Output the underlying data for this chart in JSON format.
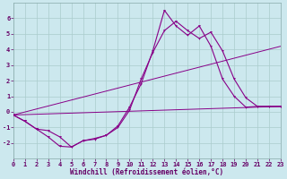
{
  "xlabel": "Windchill (Refroidissement éolien,°C)",
  "bg_color": "#cce8ee",
  "line_color": "#880088",
  "grid_color": "#aacccc",
  "curve1_x": [
    0,
    1,
    2,
    3,
    4,
    5,
    6,
    7,
    8,
    9,
    10,
    11,
    12,
    13,
    14,
    15,
    16,
    17,
    18,
    19,
    20,
    21,
    22,
    23
  ],
  "curve1_y": [
    -0.2,
    -0.6,
    -1.1,
    -1.6,
    -2.2,
    -2.25,
    -1.85,
    -1.7,
    -1.5,
    -0.9,
    0.3,
    1.8,
    3.9,
    6.5,
    5.5,
    4.9,
    5.5,
    4.2,
    2.1,
    1.0,
    0.3,
    0.35,
    0.35,
    0.35
  ],
  "curve2_x": [
    0,
    1,
    2,
    3,
    4,
    5,
    6,
    7,
    8,
    9,
    10,
    11,
    12,
    13,
    14,
    15,
    16,
    17,
    18,
    19,
    20,
    21,
    22,
    23
  ],
  "curve2_y": [
    -0.2,
    -0.6,
    -1.1,
    -1.2,
    -1.6,
    -2.25,
    -1.85,
    -1.75,
    -1.5,
    -1.0,
    0.1,
    2.1,
    3.8,
    5.2,
    5.8,
    5.2,
    4.7,
    5.1,
    3.9,
    2.1,
    0.9,
    0.35,
    0.35,
    0.35
  ],
  "line1_x": [
    0,
    23
  ],
  "line1_y": [
    -0.2,
    0.35
  ],
  "line2_x": [
    0,
    23
  ],
  "line2_y": [
    -0.2,
    4.2
  ],
  "ylim": [
    -3,
    7
  ],
  "xlim": [
    0,
    23
  ],
  "yticks": [
    -2,
    -1,
    0,
    1,
    2,
    3,
    4,
    5,
    6
  ],
  "xticks": [
    0,
    1,
    2,
    3,
    4,
    5,
    6,
    7,
    8,
    9,
    10,
    11,
    12,
    13,
    14,
    15,
    16,
    17,
    18,
    19,
    20,
    21,
    22,
    23
  ],
  "tick_fontsize": 5.0,
  "label_fontsize": 5.5,
  "label_color": "#660066",
  "tick_color": "#660066"
}
